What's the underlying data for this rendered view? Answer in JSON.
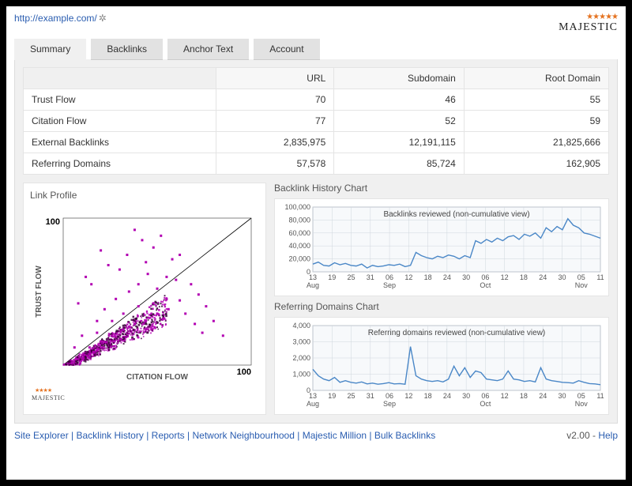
{
  "url": "http://example.com/",
  "logo": {
    "stars": "★★★★★",
    "text": "MAJESTIC"
  },
  "tabs": [
    "Summary",
    "Backlinks",
    "Anchor Text",
    "Account"
  ],
  "active_tab": 0,
  "table": {
    "headers": [
      "",
      "URL",
      "Subdomain",
      "Root Domain"
    ],
    "rows": [
      [
        "Trust Flow",
        "70",
        "46",
        "55"
      ],
      [
        "Citation Flow",
        "77",
        "52",
        "59"
      ],
      [
        "External Backlinks",
        "2,835,975",
        "12,191,115",
        "21,825,666"
      ],
      [
        "Referring Domains",
        "57,578",
        "85,724",
        "162,905"
      ]
    ]
  },
  "link_profile": {
    "title": "Link Profile",
    "type": "scatter",
    "xlabel": "CITATION FLOW",
    "ylabel": "TRUST FLOW",
    "xlim": [
      0,
      100
    ],
    "ylim": [
      0,
      100
    ],
    "axis_max_label": "100",
    "diagonal": true,
    "point_color": "#b200b2",
    "dense_color": "#3a0138",
    "background_color": "#ffffff",
    "font_size": 9,
    "label_font_size": 10,
    "points_sparse": [
      [
        20,
        78
      ],
      [
        38,
        92
      ],
      [
        52,
        88
      ],
      [
        58,
        72
      ],
      [
        62,
        75
      ],
      [
        48,
        80
      ],
      [
        30,
        65
      ],
      [
        44,
        70
      ],
      [
        55,
        60
      ],
      [
        60,
        58
      ],
      [
        68,
        55
      ],
      [
        72,
        48
      ],
      [
        76,
        40
      ],
      [
        80,
        30
      ],
      [
        85,
        20
      ],
      [
        40,
        55
      ],
      [
        35,
        50
      ],
      [
        28,
        45
      ],
      [
        22,
        38
      ],
      [
        18,
        30
      ],
      [
        45,
        62
      ],
      [
        50,
        52
      ],
      [
        12,
        60
      ],
      [
        8,
        42
      ],
      [
        15,
        55
      ],
      [
        24,
        68
      ],
      [
        34,
        75
      ],
      [
        42,
        85
      ],
      [
        10,
        20
      ],
      [
        6,
        12
      ],
      [
        65,
        35
      ],
      [
        70,
        28
      ],
      [
        74,
        22
      ],
      [
        55,
        45
      ],
      [
        48,
        42
      ],
      [
        40,
        40
      ],
      [
        32,
        35
      ],
      [
        26,
        30
      ],
      [
        18,
        22
      ],
      [
        62,
        44
      ],
      [
        56,
        38
      ],
      [
        50,
        35
      ],
      [
        44,
        30
      ],
      [
        38,
        28
      ],
      [
        32,
        24
      ],
      [
        26,
        20
      ],
      [
        20,
        16
      ],
      [
        14,
        12
      ]
    ]
  },
  "backlink_chart": {
    "title": "Backlink History Chart",
    "subtitle": "Backlinks reviewed (non-cumulative view)",
    "type": "line",
    "ylim": [
      0,
      100000
    ],
    "yticks": [
      0,
      20000,
      40000,
      60000,
      80000,
      100000
    ],
    "ytick_labels": [
      "0",
      "20,000",
      "40,000",
      "60,000",
      "80,000",
      "100,000"
    ],
    "x_ticks": [
      "13",
      "19",
      "25",
      "31",
      "06",
      "12",
      "18",
      "24",
      "30",
      "06",
      "12",
      "18",
      "24",
      "30",
      "05",
      "11"
    ],
    "x_months": [
      "Aug",
      "",
      "",
      "",
      "Sep",
      "",
      "",
      "",
      "",
      "Oct",
      "",
      "",
      "",
      "",
      "Nov",
      ""
    ],
    "line_color": "#4a87c7",
    "grid_color": "#cfd6dd",
    "border_color": "#8a94a0",
    "background_color": "#f7f9fb",
    "line_width": 1.4,
    "values": [
      12000,
      15000,
      10000,
      9000,
      14000,
      11000,
      13000,
      10000,
      9000,
      12000,
      6000,
      10000,
      8000,
      9000,
      11000,
      10000,
      12000,
      8000,
      10000,
      30000,
      25000,
      22000,
      20000,
      24000,
      22000,
      26000,
      24000,
      20000,
      25000,
      22000,
      48000,
      44000,
      50000,
      46000,
      52000,
      48000,
      54000,
      56000,
      50000,
      58000,
      55000,
      60000,
      52000,
      68000,
      62000,
      70000,
      65000,
      82000,
      72000,
      68000,
      60000,
      58000,
      55000,
      52000
    ]
  },
  "refdom_chart": {
    "title": "Referring Domains Chart",
    "subtitle": "Referring domains reviewed (non-cumulative view)",
    "type": "line",
    "ylim": [
      0,
      4000
    ],
    "yticks": [
      0,
      1000,
      2000,
      3000,
      4000
    ],
    "ytick_labels": [
      "0",
      "1,000",
      "2,000",
      "3,000",
      "4,000"
    ],
    "x_ticks": [
      "13",
      "19",
      "25",
      "31",
      "06",
      "12",
      "18",
      "24",
      "30",
      "06",
      "12",
      "18",
      "24",
      "30",
      "05",
      "11"
    ],
    "x_months": [
      "Aug",
      "",
      "",
      "",
      "Sep",
      "",
      "",
      "",
      "",
      "Oct",
      "",
      "",
      "",
      "",
      "Nov",
      ""
    ],
    "line_color": "#4a87c7",
    "grid_color": "#cfd6dd",
    "border_color": "#8a94a0",
    "background_color": "#f7f9fb",
    "line_width": 1.4,
    "values": [
      1300,
      900,
      700,
      600,
      800,
      500,
      600,
      500,
      450,
      520,
      400,
      450,
      380,
      420,
      480,
      400,
      420,
      380,
      2700,
      900,
      700,
      600,
      550,
      600,
      520,
      700,
      1500,
      900,
      1400,
      800,
      1200,
      1100,
      700,
      650,
      600,
      700,
      1200,
      700,
      650,
      550,
      600,
      520,
      1400,
      700,
      600,
      550,
      500,
      480,
      450,
      600,
      500,
      420,
      400,
      350
    ]
  },
  "footer_links": [
    "Site Explorer",
    "Backlink History",
    "Reports",
    "Network Neighbourhood",
    "Majestic Million",
    "Bulk Backlinks"
  ],
  "version": "v2.00",
  "help": "Help"
}
